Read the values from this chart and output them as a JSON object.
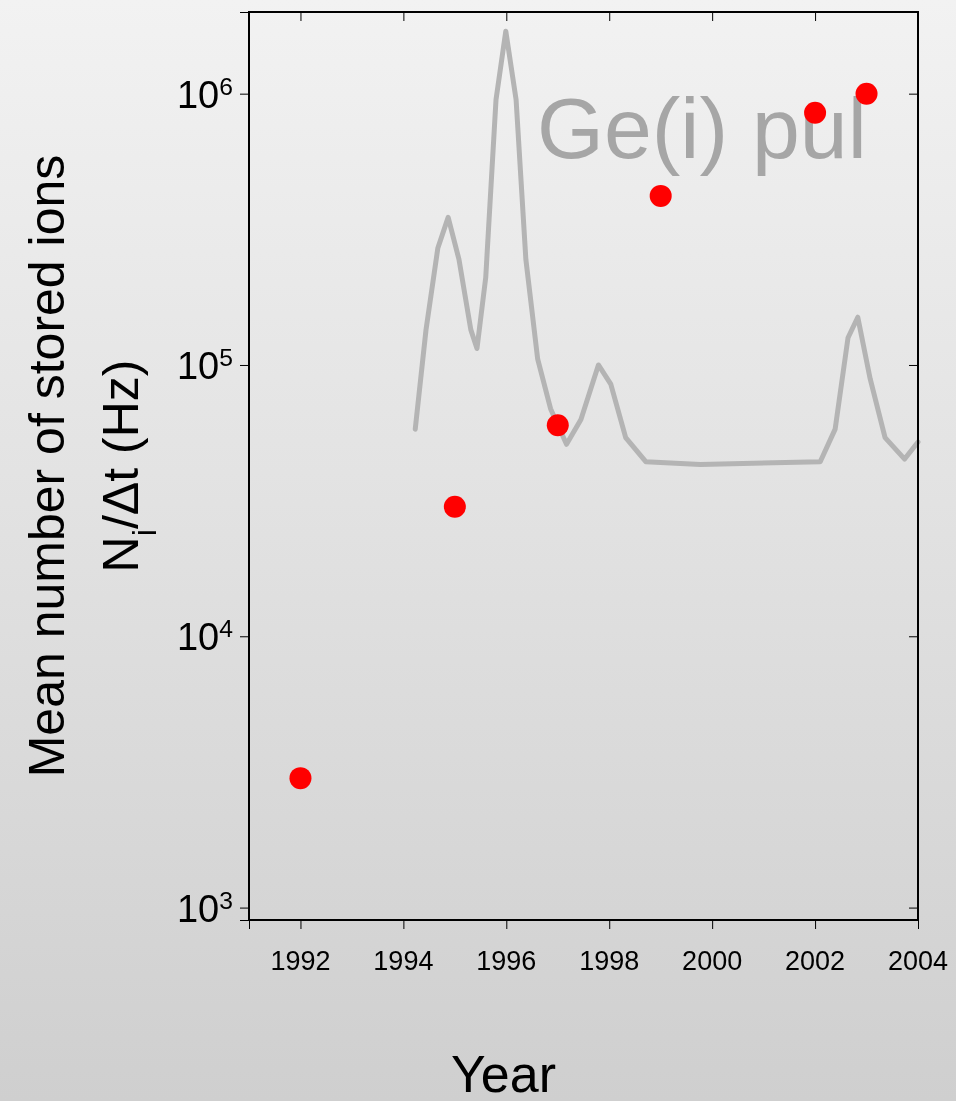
{
  "chart_data": {
    "type": "scatter",
    "xlabel": "Year",
    "ylabel": "Mean number of stored ions\nN$_{i}$/Δt (Hz)",
    "log": "y",
    "grid": false,
    "xlim": [
      1991,
      2004
    ],
    "xticks": [
      1992,
      1994,
      1996,
      1998,
      2000,
      2002,
      2004
    ],
    "ylim": [
      900,
      2000000
    ],
    "yticks": [
      {
        "value": 1000,
        "label": "10$^{3}$"
      },
      {
        "value": 10000,
        "label": "10$^{4}$"
      },
      {
        "value": 100000,
        "label": "10$^{5}$"
      },
      {
        "value": 1000000,
        "label": "10$^{6}$"
      }
    ],
    "annotations": [
      "Ge(i) pul"
    ],
    "series": [
      {
        "type": "line",
        "color": "#b4b4b4",
        "x": [
          1994.23,
          1994.44,
          1994.67,
          1994.87,
          1995.08,
          1995.31,
          1995.43,
          1995.6,
          1995.8,
          1995.99,
          1996.19,
          1996.38,
          1996.61,
          1996.86,
          1997.17,
          1997.45,
          1997.79,
          1998.03,
          1998.32,
          1998.71,
          1999.77,
          2002.1,
          2002.39,
          2002.64,
          2002.83,
          2003.07,
          2003.36,
          2003.74,
          2004
        ],
        "values": [
          58000,
          135000,
          270000,
          350000,
          245000,
          135000,
          115000,
          210000,
          950000,
          1700000,
          950000,
          245000,
          105000,
          69000,
          51000,
          63000,
          100000,
          85000,
          54000,
          44000,
          43000,
          44000,
          58000,
          126000,
          150000,
          89000,
          54000,
          45000,
          52000
        ]
      },
      {
        "marker": "circle",
        "color": "#ff0000",
        "x": [
          1992,
          1995,
          1997,
          1999,
          2002,
          2003
        ],
        "values": [
          3000,
          30000,
          60000,
          420000,
          850000,
          1000000
        ]
      }
    ]
  }
}
